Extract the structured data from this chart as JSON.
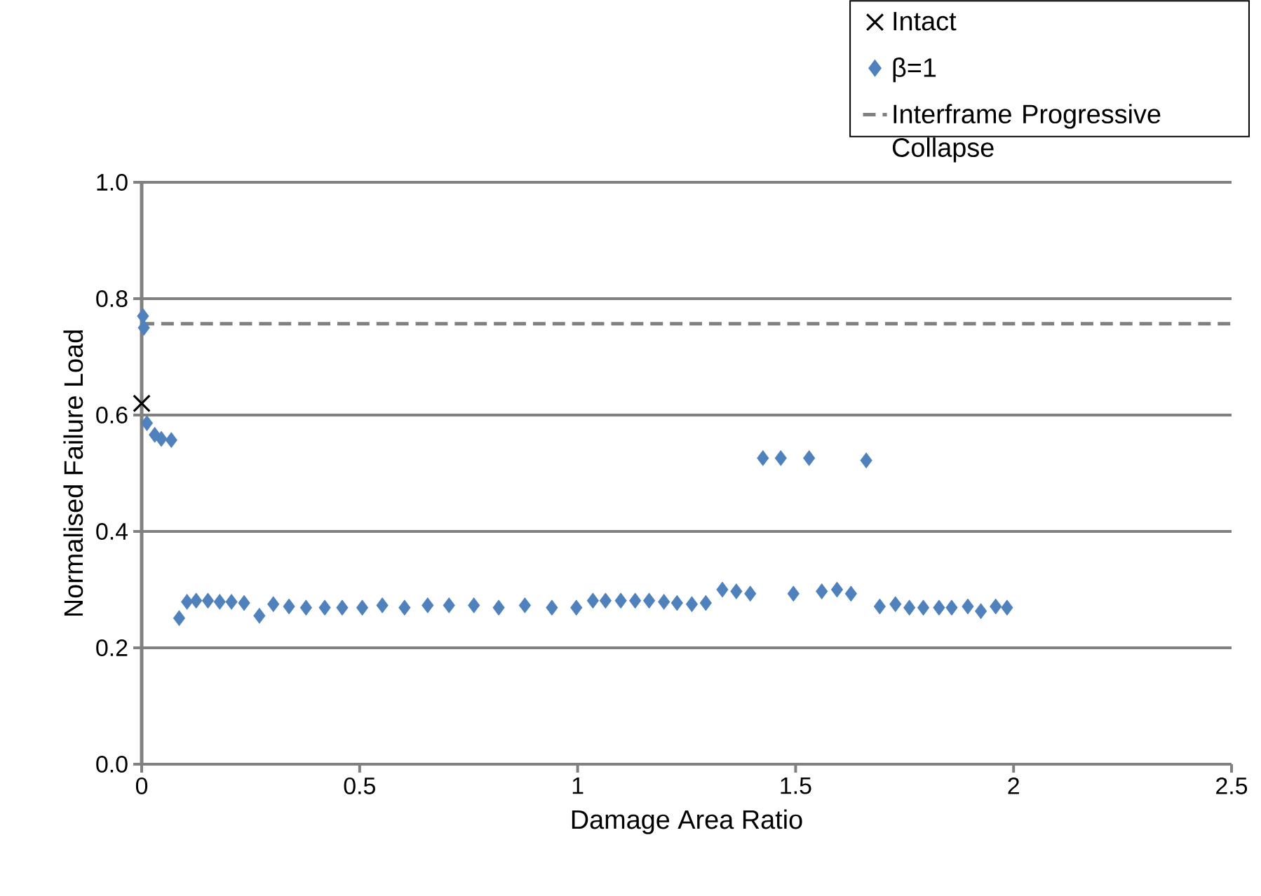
{
  "chart_data": {
    "type": "scatter",
    "xlabel": "Damage Area Ratio",
    "ylabel": "Normalised Failure Load",
    "xlim": [
      0,
      2.5
    ],
    "xticks": [
      0,
      0.5,
      1,
      1.5,
      2,
      2.5
    ],
    "ylim": [
      0,
      1
    ],
    "yticks": [
      {
        "value": 0,
        "label": "0.0"
      },
      {
        "value": 0.2,
        "label": "0.2"
      },
      {
        "value": 0.4,
        "label": "0.4"
      },
      {
        "value": 0.6,
        "label": "0.6"
      },
      {
        "value": 0.8,
        "label": "0.8"
      },
      {
        "value": 1,
        "label": "1.0"
      }
    ],
    "grid": "y",
    "legend": "top right",
    "series": [
      {
        "name": "Intact",
        "color": "#000000",
        "marker": "cross",
        "x": [
          0
        ],
        "values": [
          0.62
        ]
      },
      {
        "name": "β=1",
        "color": "#4f81bd",
        "marker": "diamond",
        "x": [
          0.003,
          0.005,
          0.012,
          0.03,
          0.045,
          0.068,
          0.086,
          0.104,
          0.125,
          0.152,
          0.179,
          0.206,
          0.235,
          0.27,
          0.302,
          0.338,
          0.377,
          0.42,
          0.46,
          0.506,
          0.552,
          0.603,
          0.656,
          0.705,
          0.762,
          0.819,
          0.879,
          0.941,
          0.997,
          1.035,
          1.064,
          1.099,
          1.132,
          1.164,
          1.198,
          1.228,
          1.262,
          1.294,
          1.332,
          1.364,
          1.396,
          1.425,
          1.466,
          1.495,
          1.531,
          1.56,
          1.595,
          1.627,
          1.662,
          1.693,
          1.729,
          1.761,
          1.793,
          1.829,
          1.858,
          1.895,
          1.925,
          1.959,
          1.985
        ],
        "values": [
          0.77,
          0.75,
          0.586,
          0.566,
          0.559,
          0.557,
          0.251,
          0.279,
          0.281,
          0.281,
          0.279,
          0.279,
          0.277,
          0.255,
          0.275,
          0.271,
          0.269,
          0.269,
          0.269,
          0.269,
          0.273,
          0.269,
          0.273,
          0.273,
          0.273,
          0.269,
          0.273,
          0.269,
          0.269,
          0.281,
          0.281,
          0.281,
          0.281,
          0.281,
          0.279,
          0.277,
          0.275,
          0.277,
          0.3,
          0.297,
          0.293,
          0.526,
          0.526,
          0.293,
          0.526,
          0.297,
          0.3,
          0.293,
          0.522,
          0.271,
          0.275,
          0.269,
          0.269,
          0.269,
          0.269,
          0.271,
          0.263,
          0.271,
          0.269
        ]
      }
    ],
    "ref_lines": [
      {
        "axis": "y",
        "value": 0.757,
        "label": "Interframe Progressive Collapse",
        "color": "#808080",
        "line_style": "dashed"
      }
    ]
  }
}
